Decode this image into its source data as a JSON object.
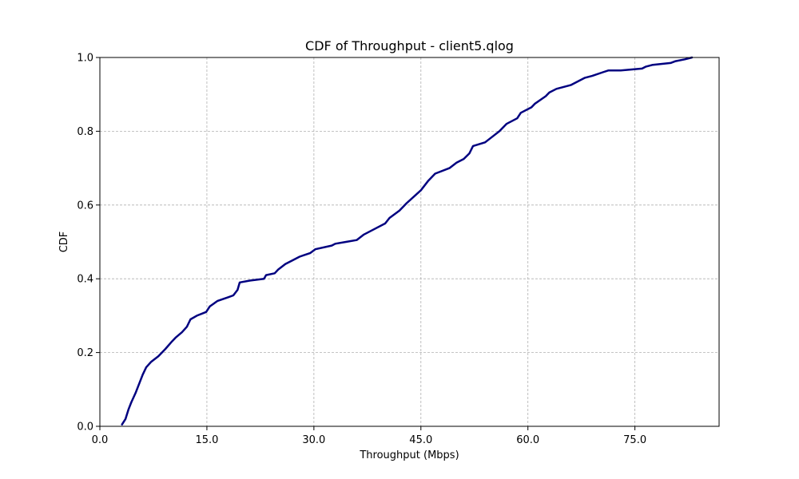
{
  "chart_data": {
    "type": "line",
    "title": "CDF of Throughput - client5.qlog",
    "xlabel": "Throughput (Mbps)",
    "ylabel": "CDF",
    "xlim": [
      0,
      86.8
    ],
    "ylim": [
      0,
      1.0
    ],
    "xticks": [
      0,
      15,
      30,
      45,
      60,
      75
    ],
    "xtick_labels": [
      "0.0",
      "15.0",
      "30.0",
      "45.0",
      "60.0",
      "75.0"
    ],
    "yticks": [
      0,
      0.2,
      0.4,
      0.6,
      0.8,
      1.0
    ],
    "ytick_labels": [
      "0.0",
      "0.2",
      "0.4",
      "0.6",
      "0.8",
      "1.0"
    ],
    "grid": true,
    "line_color": "#000080",
    "series": [
      {
        "x": [
          3.1,
          3.6,
          4.0,
          4.4,
          5.0,
          5.6,
          6.0,
          6.5,
          7.2,
          8.2,
          9.2,
          10.1,
          10.6,
          11.5,
          12.2,
          12.7,
          13.6,
          14.9,
          15.4,
          16.5,
          18.0,
          18.7,
          19.3,
          19.6,
          21.0,
          23.0,
          23.3,
          24.5,
          25.0,
          26.0,
          27.0,
          28.0,
          29.5,
          30.2,
          32.5,
          33.0,
          34.5,
          36.0,
          37.0,
          38.5,
          40.0,
          40.6,
          42.0,
          43.0,
          45.0,
          46.0,
          47.0,
          49.0,
          50.0,
          51.0,
          51.8,
          52.3,
          54.0,
          55.0,
          56.0,
          57.0,
          58.5,
          59.0,
          60.5,
          61.0,
          62.5,
          63.0,
          64.0,
          66.0,
          67.0,
          68.0,
          69.0,
          70.5,
          71.3,
          73.0,
          76.0,
          76.5,
          77.5,
          80.0,
          80.7,
          82.0,
          83.0
        ],
        "y": [
          0.005,
          0.02,
          0.045,
          0.065,
          0.09,
          0.12,
          0.14,
          0.16,
          0.175,
          0.19,
          0.21,
          0.23,
          0.24,
          0.255,
          0.27,
          0.29,
          0.3,
          0.31,
          0.325,
          0.34,
          0.35,
          0.355,
          0.37,
          0.39,
          0.395,
          0.4,
          0.41,
          0.415,
          0.425,
          0.44,
          0.45,
          0.46,
          0.47,
          0.48,
          0.49,
          0.495,
          0.5,
          0.505,
          0.52,
          0.535,
          0.55,
          0.565,
          0.585,
          0.605,
          0.64,
          0.665,
          0.685,
          0.7,
          0.715,
          0.725,
          0.74,
          0.76,
          0.77,
          0.785,
          0.8,
          0.82,
          0.835,
          0.85,
          0.865,
          0.875,
          0.895,
          0.905,
          0.915,
          0.925,
          0.935,
          0.945,
          0.95,
          0.96,
          0.965,
          0.965,
          0.97,
          0.975,
          0.98,
          0.985,
          0.99,
          0.995,
          1.0
        ]
      }
    ]
  }
}
